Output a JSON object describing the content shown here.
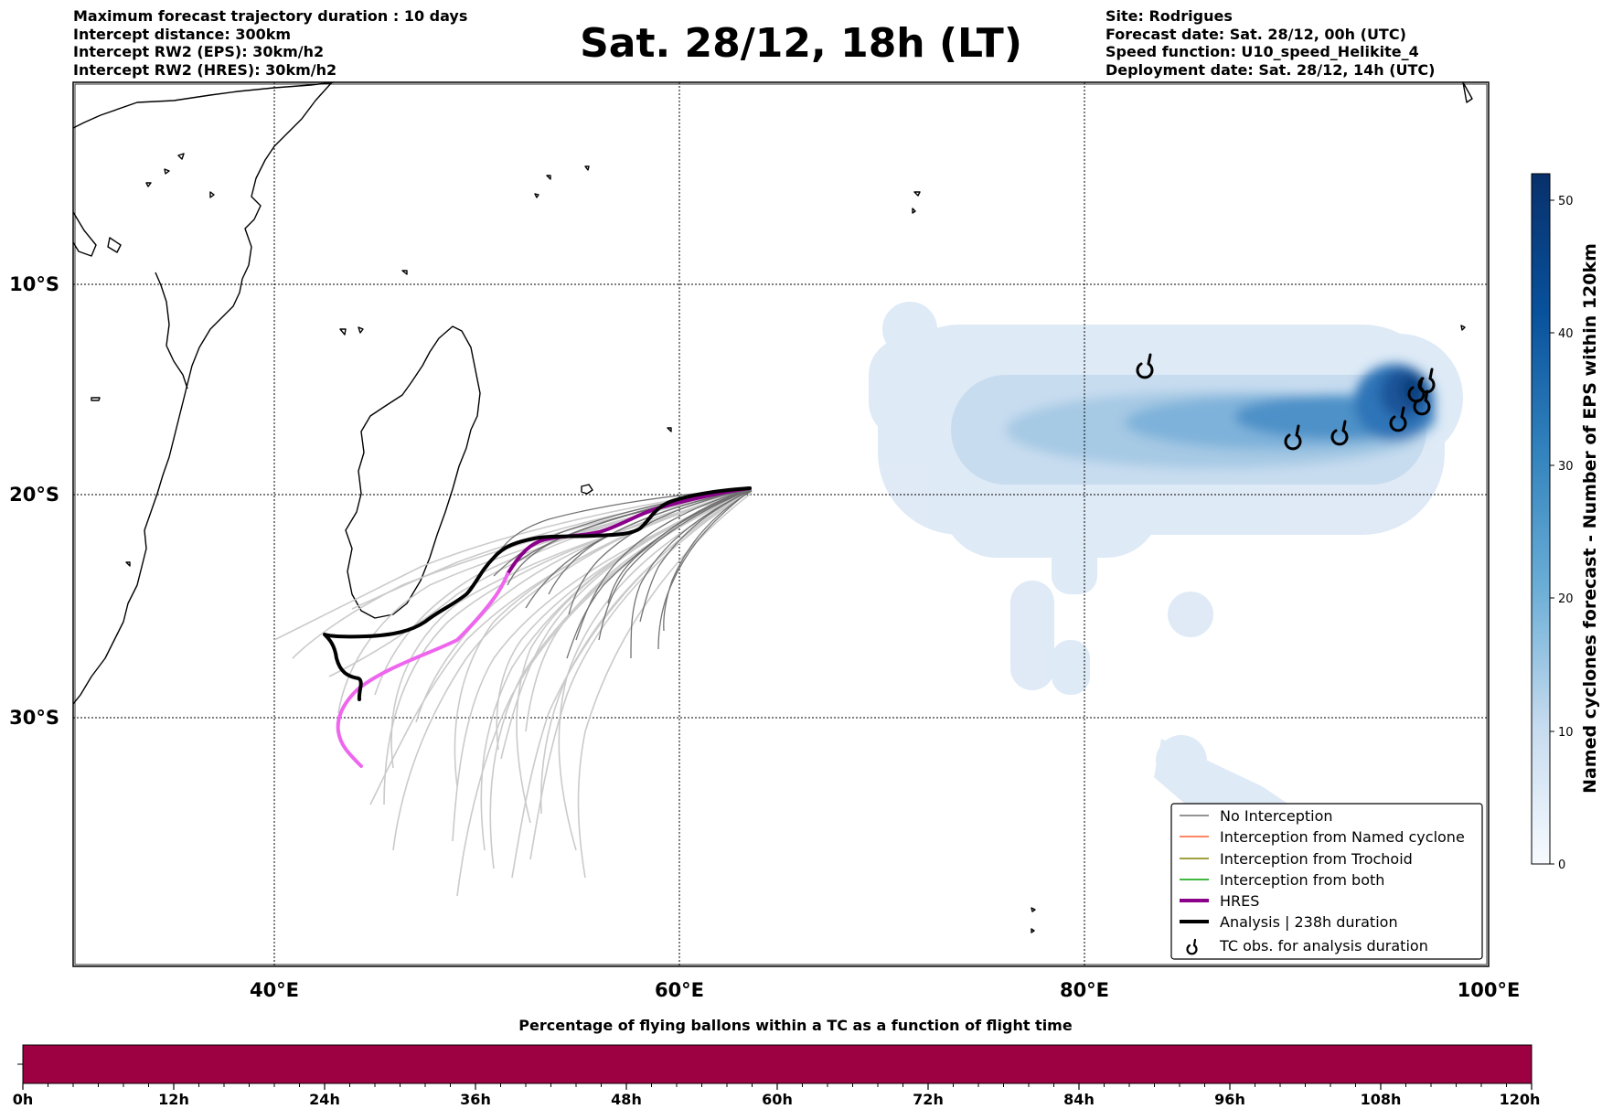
{
  "header_left": [
    "Maximum forecast trajectory duration : 10 days",
    "Intercept distance: 300km",
    "Intercept RW2 (EPS):  30km/h2",
    "Intercept RW2 (HRES): 30km/h2"
  ],
  "title": "Sat. 28/12, 18h (LT)",
  "header_right": [
    "Site: Rodrigues",
    "Forecast date: Sat. 28/12, 00h (UTC)",
    "Speed function: U10_speed_Helikite_4",
    "Deployment date: Sat. 28/12, 14h (UTC)"
  ],
  "map": {
    "lon_labels": [
      "40°E",
      "60°E",
      "80°E",
      "100°E"
    ],
    "lat_labels": [
      "10°S",
      "20°S",
      "30°S"
    ]
  },
  "colorbar": {
    "label": "Named cyclones forecast - Number of EPS within 120km",
    "ticks": [
      "0",
      "10",
      "20",
      "30",
      "40",
      "50"
    ],
    "min": 0,
    "max": 52,
    "colors": [
      "#f7fbff",
      "#08306b"
    ]
  },
  "legend": [
    {
      "label": "No Interception",
      "color": "#707070"
    },
    {
      "label": "Interception from Named cyclone",
      "color": "#ff6030"
    },
    {
      "label": "Interception from Trochoid",
      "color": "#808000"
    },
    {
      "label": "Interception from both",
      "color": "#00a000"
    },
    {
      "label": "HRES",
      "color": "#8b008b"
    },
    {
      "label": "Analysis | 238h duration",
      "color": "#000000"
    },
    {
      "label": "TC obs. for analysis duration",
      "color": "#000000",
      "icon": "cyclone-symbol-icon"
    }
  ],
  "bottom_bar": {
    "title": "Percentage of flying ballons within a TC as a function of flight time",
    "color": "#9e0142",
    "ticks": [
      "0h",
      "12h",
      "24h",
      "36h",
      "48h",
      "60h",
      "72h",
      "84h",
      "96h",
      "108h",
      "120h"
    ]
  }
}
